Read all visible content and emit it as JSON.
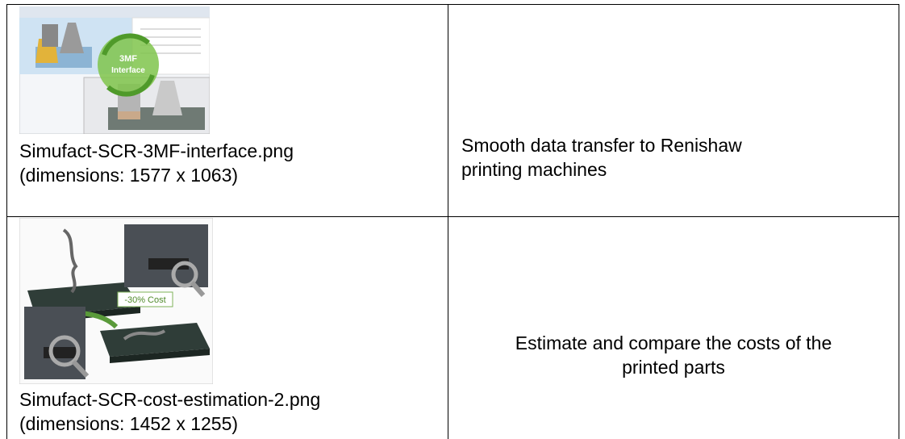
{
  "table": {
    "rows": [
      {
        "image": {
          "badge": [
            "3MF",
            "Interface"
          ]
        },
        "filename": "Simufact-SCR-3MF-interface.png",
        "dimensions": "(dimensions: 1577 x 1063)",
        "description": [
          "Smooth data transfer to Renishaw",
          "printing machines"
        ]
      },
      {
        "image": {
          "badge": [
            "-30% Cost"
          ]
        },
        "filename": "Simufact-SCR-cost-estimation-2.png",
        "dimensions": "(dimensions: 1452 x 1255)",
        "description": [
          "Estimate and compare the costs of the",
          "printed parts"
        ]
      }
    ]
  }
}
